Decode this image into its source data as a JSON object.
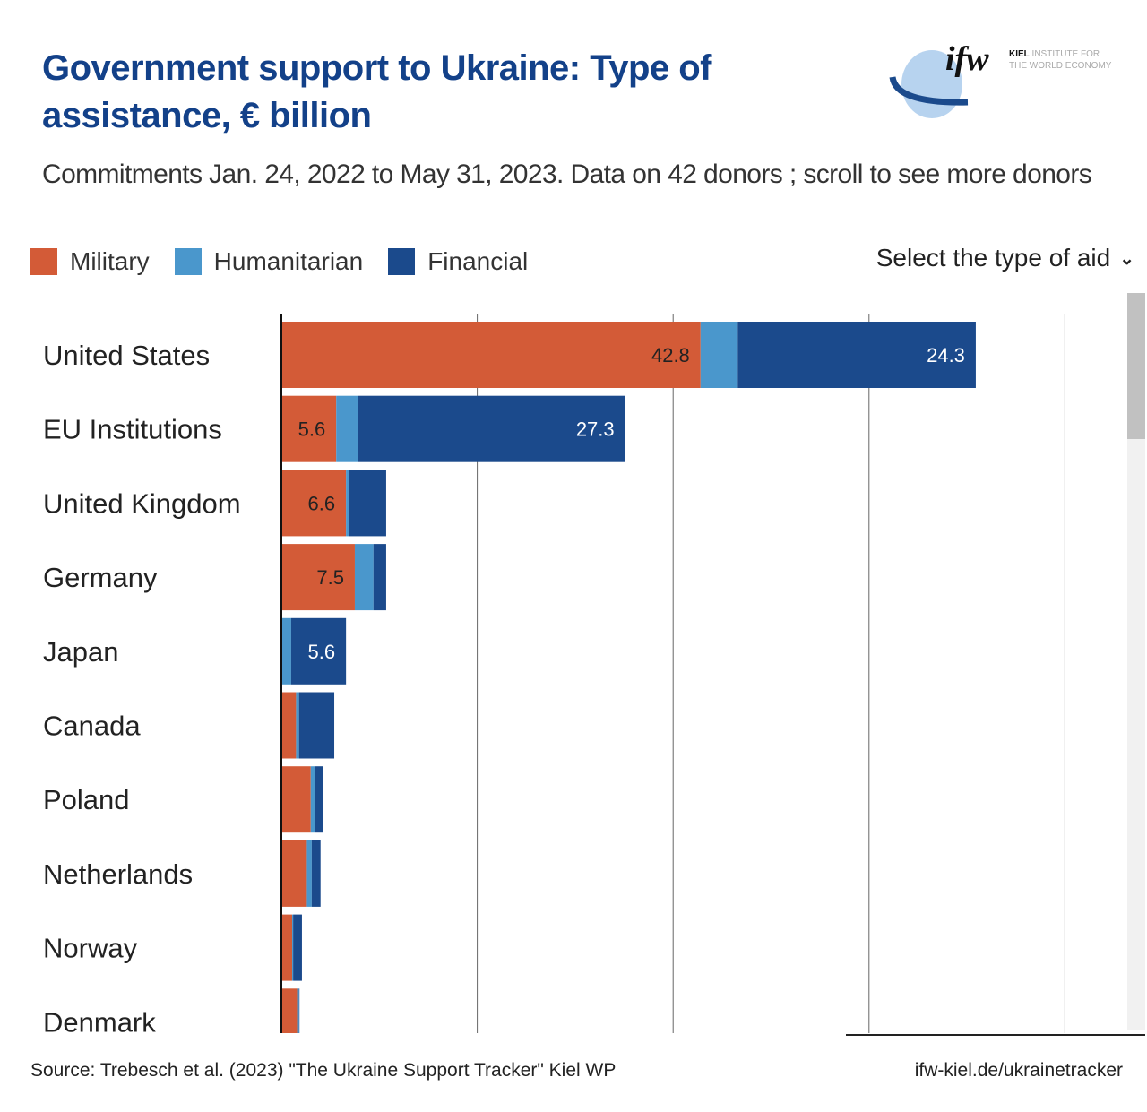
{
  "header": {
    "title": "Government support to Ukraine: Type of assistance, € billion",
    "subtitle": "Commitments Jan. 24, 2022 to May 31, 2023. Data on 42 donors ; scroll to see more donors",
    "logo_text": "ifw KIEL INSTITUTE FOR THE WORLD ECONOMY",
    "select_label": "Select the type of aid"
  },
  "footer": {
    "source": "Source: Trebesch et al. (2023) \"The Ukraine Support Tracker\" Kiel WP",
    "link": "ifw-kiel.de/ukrainetracker"
  },
  "colors": {
    "military": "#d35b37",
    "humanitarian": "#4a97cc",
    "financial": "#1b4a8c",
    "title": "#134189"
  },
  "chart_data": {
    "type": "bar",
    "orientation": "horizontal",
    "stacked": true,
    "title": "Government support to Ukraine: Type of assistance, € billion",
    "xlim": [
      0,
      85
    ],
    "grid_x": [
      20,
      40,
      60,
      80
    ],
    "grid": true,
    "legend_placement": "top-left",
    "categories": [
      "United States",
      "EU Institutions",
      "United Kingdom",
      "Germany",
      "Japan",
      "Canada",
      "Poland",
      "Netherlands",
      "Norway",
      "Denmark"
    ],
    "series": [
      {
        "name": "Military",
        "color": "#d35b37",
        "values": [
          42.8,
          5.6,
          6.6,
          7.5,
          0,
          1.5,
          3.0,
          2.6,
          1.1,
          1.6
        ],
        "labels": [
          "42.8",
          "5.6",
          "6.6",
          "7.5",
          "",
          "",
          "",
          "",
          "",
          ""
        ]
      },
      {
        "name": "Humanitarian",
        "color": "#4a97cc",
        "values": [
          3.8,
          2.2,
          0.3,
          1.9,
          1.0,
          0.3,
          0.4,
          0.5,
          0.1,
          0.2
        ],
        "labels": [
          "",
          "",
          "",
          "",
          "",
          "",
          "",
          "",
          "",
          ""
        ]
      },
      {
        "name": "Financial",
        "color": "#1b4a8c",
        "values": [
          24.3,
          27.3,
          3.8,
          1.3,
          5.6,
          3.6,
          0.9,
          0.9,
          0.9,
          0.05
        ],
        "labels": [
          "24.3",
          "27.3",
          "",
          "",
          "5.6",
          "",
          "",
          "",
          "",
          ""
        ]
      }
    ]
  }
}
